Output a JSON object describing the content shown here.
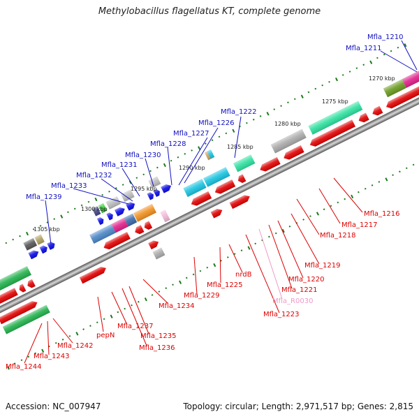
{
  "title": "Methylobacillus flagellatus KT, complete genome",
  "footer": {
    "accession": "Accession: NC_007947",
    "topology": "Topology: circular; Length: 2,971,517 bp; Genes: 2,815"
  },
  "colors": {
    "top_strand_label": "#1010c0",
    "bottom_strand_label": "#dd0000",
    "rna_label": "#f09ac8",
    "backbone": "#888888",
    "ruler_tick": "#1a7a1a"
  },
  "kbp_labels": [
    "1305 kbp",
    "1300 kbp",
    "1295 kbp",
    "1290 kbp",
    "1285 kbp",
    "1280 kbp",
    "1275 kbp",
    "1270 kbp"
  ],
  "top_labels": [
    "Mfla_1210",
    "Mfla_1211",
    "Mfla_1222",
    "Mfla_1226",
    "Mfla_1227",
    "Mfla_1228",
    "Mfla_1230",
    "Mfla_1231",
    "Mfla_1232",
    "Mfla_1233",
    "Mfla_1239"
  ],
  "bottom_labels": [
    "Mfla_1216",
    "Mfla_1217",
    "Mfla_1218",
    "Mfla_1219",
    "Mfla_1220",
    "Mfla_1221",
    "Mfla_R0030",
    "Mfla_1223",
    "nrdB",
    "Mfla_1225",
    "Mfla_1229",
    "Mfla_1234",
    "Mfla_1235",
    "Mfla_1236",
    "Mfla_1237",
    "pepN",
    "Mfla_1242",
    "Mfla_1243",
    "Mfla_1244"
  ]
}
